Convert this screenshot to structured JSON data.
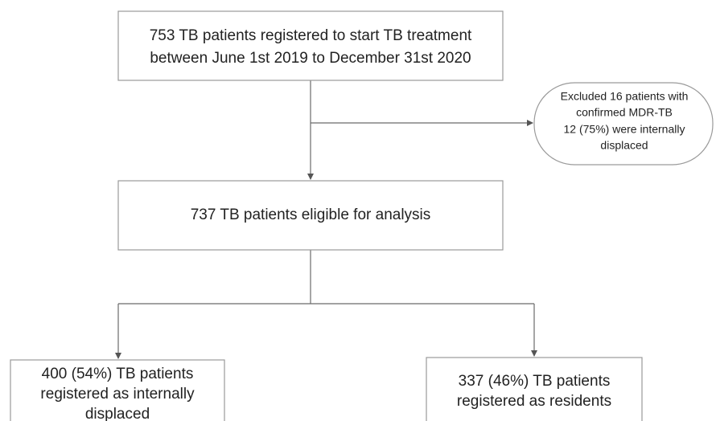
{
  "nodes": [
    {
      "lines": [
        "753 TB patients registered to start TB treatment",
        "between June 1st 2019 to December 31st 2020"
      ]
    },
    {
      "lines": [
        "Excluded 16 patients with",
        "confirmed MDR-TB",
        "12 (75%) were internally",
        "displaced"
      ]
    },
    {
      "lines": [
        "737 TB patients eligible for analysis"
      ]
    },
    {
      "lines": [
        "400 (54%) TB patients",
        "registered as internally",
        "displaced"
      ]
    },
    {
      "lines": [
        "337 (46%) TB patients",
        "registered as residents"
      ]
    }
  ]
}
